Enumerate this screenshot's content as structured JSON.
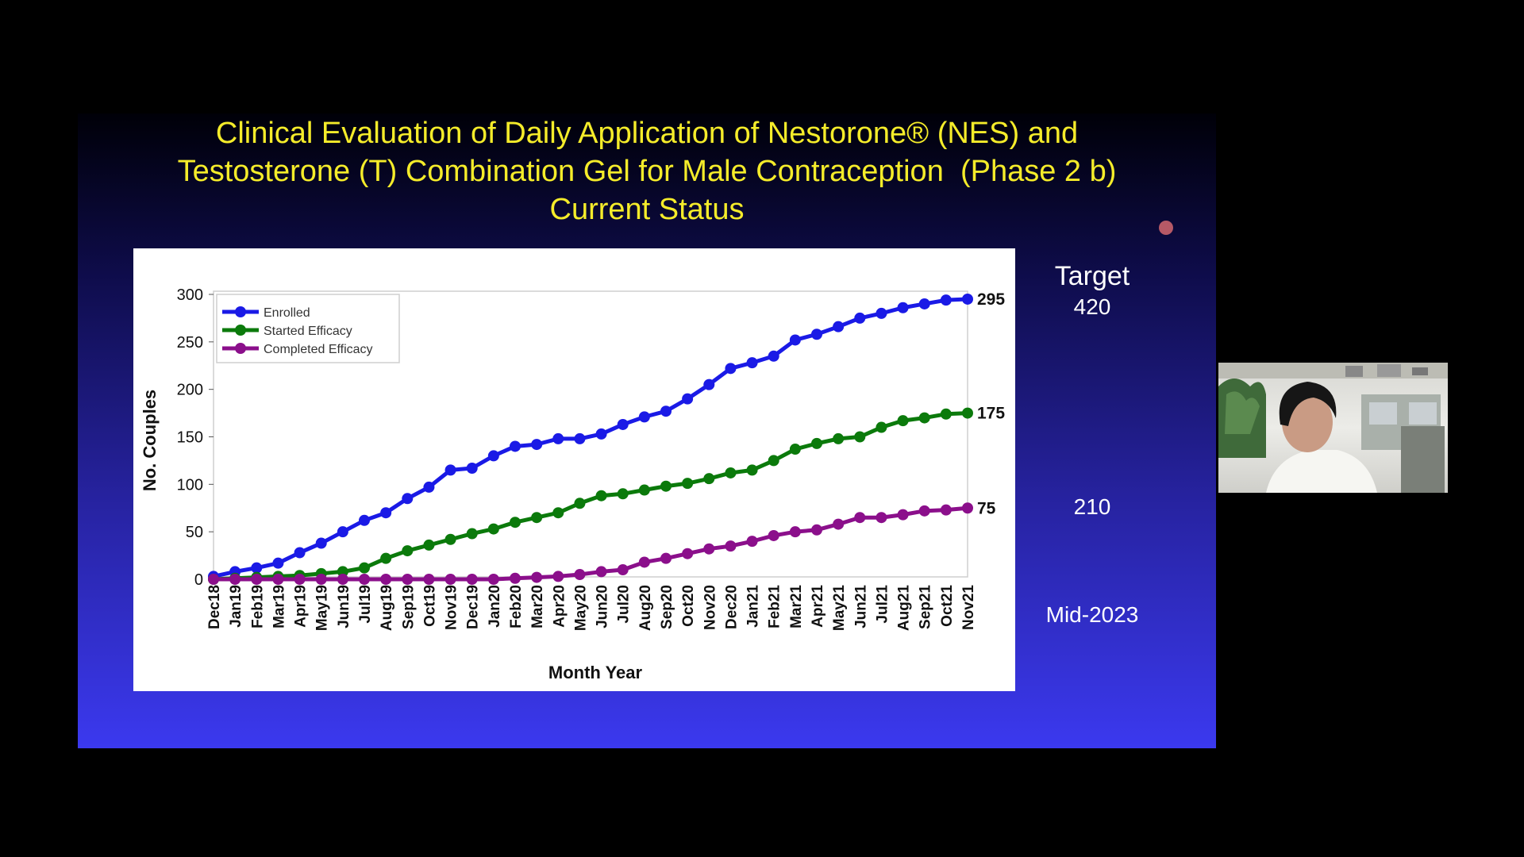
{
  "slide": {
    "title_lines": [
      "Clinical Evaluation of Daily Application of Nestorone® (NES) and",
      "Testosterone (T) Combination Gel for Male Contraception  (Phase 2 b)",
      "Current Status"
    ],
    "target_label": "Target",
    "target_value": "420",
    "value_210": "210",
    "date_label": "Mid-2023"
  },
  "colors": {
    "title": "#f5ec2a",
    "enrolled": "#1a1ae6",
    "started": "#0b7a0b",
    "completed": "#8b0f8b"
  },
  "chart_data": {
    "type": "line",
    "xlabel": "Month Year",
    "ylabel": "No. Couples",
    "ylim": [
      0,
      300
    ],
    "yticks": [
      0,
      50,
      100,
      150,
      200,
      250,
      300
    ],
    "legend": "top-left",
    "categories": [
      "Dec18",
      "Jan19",
      "Feb19",
      "Mar19",
      "Apr19",
      "May19",
      "Jun19",
      "Jul19",
      "Aug19",
      "Sep19",
      "Oct19",
      "Nov19",
      "Dec19",
      "Jan20",
      "Feb20",
      "Mar20",
      "Apr20",
      "May20",
      "Jun20",
      "Jul20",
      "Aug20",
      "Sep20",
      "Oct20",
      "Nov20",
      "Dec20",
      "Jan21",
      "Feb21",
      "Mar21",
      "Apr21",
      "May21",
      "Jun21",
      "Jul21",
      "Aug21",
      "Sep21",
      "Oct21",
      "Nov21"
    ],
    "series": [
      {
        "name": "Enrolled",
        "color": "#1a1ae6",
        "end_label": "295",
        "values": [
          3,
          8,
          12,
          17,
          28,
          38,
          50,
          62,
          70,
          85,
          97,
          115,
          117,
          130,
          140,
          142,
          148,
          148,
          153,
          163,
          171,
          177,
          190,
          205,
          222,
          228,
          235,
          252,
          258,
          266,
          275,
          280,
          286,
          290,
          294,
          295
        ]
      },
      {
        "name": "Started Efficacy",
        "color": "#0b7a0b",
        "end_label": "175",
        "values": [
          0,
          1,
          2,
          3,
          4,
          6,
          8,
          12,
          22,
          30,
          36,
          42,
          48,
          53,
          60,
          65,
          70,
          80,
          88,
          90,
          94,
          98,
          101,
          106,
          112,
          115,
          125,
          137,
          143,
          148,
          150,
          160,
          167,
          170,
          174,
          175
        ]
      },
      {
        "name": "Completed Efficacy",
        "color": "#8b0f8b",
        "end_label": "75",
        "values": [
          0,
          0,
          0,
          0,
          0,
          0,
          0,
          0,
          0,
          0,
          0,
          0,
          0,
          0,
          1,
          2,
          3,
          5,
          8,
          10,
          18,
          22,
          27,
          32,
          35,
          40,
          46,
          50,
          52,
          58,
          65,
          65,
          68,
          72,
          73,
          75
        ]
      }
    ]
  }
}
